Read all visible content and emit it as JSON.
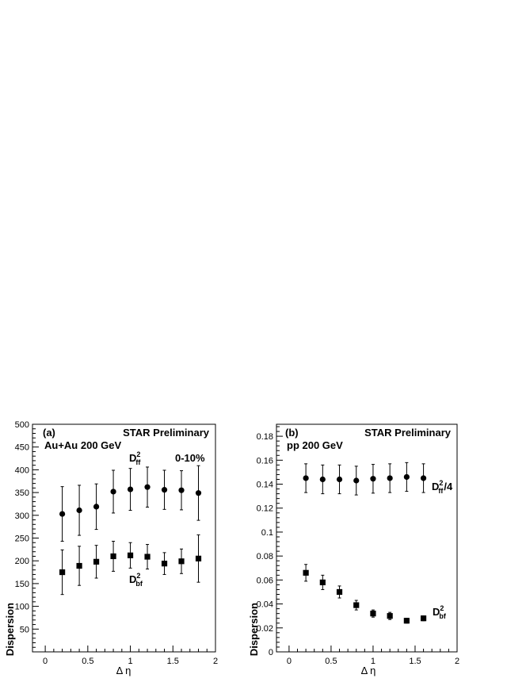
{
  "chart_data": [
    {
      "type": "scatter",
      "panel_label": "(a)",
      "annotations": [
        "STAR Preliminary",
        "Au+Au 200 GeV",
        "0-10%"
      ],
      "xlabel": "Δ η",
      "ylabel": "Dispersion",
      "xlim": [
        -0.15,
        2.0
      ],
      "ylim": [
        0,
        500
      ],
      "xticks": [
        "0",
        "0.5",
        "1",
        "1.5",
        "2"
      ],
      "yticks": [
        "50",
        "100",
        "150",
        "200",
        "250",
        "300",
        "350",
        "400",
        "450",
        "500"
      ],
      "grid": false,
      "series": [
        {
          "name": "D",
          "name_sub": "ff",
          "name_sup": "2",
          "name_suffix": "",
          "marker": "circle",
          "x": [
            0.2,
            0.4,
            0.6,
            0.8,
            1.0,
            1.2,
            1.4,
            1.6,
            1.8
          ],
          "y": [
            303,
            311,
            319,
            352,
            357,
            362,
            356,
            355,
            349
          ],
          "yerr": [
            60,
            55,
            50,
            47,
            46,
            44,
            43,
            43,
            60
          ]
        },
        {
          "name": "D",
          "name_sub": "bf",
          "name_sup": "2",
          "name_suffix": "",
          "marker": "square",
          "x": [
            0.2,
            0.4,
            0.6,
            0.8,
            1.0,
            1.2,
            1.4,
            1.6,
            1.8
          ],
          "y": [
            175,
            189,
            198,
            210,
            212,
            209,
            194,
            199,
            205
          ],
          "yerr": [
            49,
            43,
            36,
            33,
            28,
            27,
            24,
            27,
            52
          ]
        }
      ]
    },
    {
      "type": "scatter",
      "panel_label": "(b)",
      "annotations": [
        "STAR Preliminary",
        "pp 200 GeV"
      ],
      "xlabel": "Δ η",
      "ylabel": "Dispersion",
      "xlim": [
        -0.15,
        2.0
      ],
      "ylim": [
        0,
        0.19
      ],
      "xticks": [
        "0",
        "0.5",
        "1",
        "1.5",
        "2"
      ],
      "yticks": [
        "0",
        "0.02",
        "0.04",
        "0.06",
        "0.08",
        "0.1",
        "0.12",
        "0.14",
        "0.16",
        "0.18"
      ],
      "grid": false,
      "series": [
        {
          "name": "D",
          "name_sub": "ff",
          "name_sup": "2",
          "name_suffix": "/4",
          "marker": "circle",
          "x": [
            0.2,
            0.4,
            0.6,
            0.8,
            1.0,
            1.2,
            1.4,
            1.6
          ],
          "y": [
            0.145,
            0.144,
            0.144,
            0.143,
            0.1445,
            0.145,
            0.146,
            0.145
          ],
          "yerr": [
            0.012,
            0.012,
            0.012,
            0.012,
            0.012,
            0.012,
            0.012,
            0.012
          ]
        },
        {
          "name": "D",
          "name_sub": "bf",
          "name_sup": "2",
          "name_suffix": "",
          "marker": "square",
          "x": [
            0.2,
            0.4,
            0.6,
            0.8,
            1.0,
            1.2,
            1.4,
            1.6
          ],
          "y": [
            0.066,
            0.058,
            0.05,
            0.039,
            0.032,
            0.03,
            0.026,
            0.028
          ],
          "yerr": [
            0.007,
            0.006,
            0.005,
            0.004,
            0.003,
            0.003,
            0.002,
            0.002
          ]
        }
      ]
    }
  ]
}
